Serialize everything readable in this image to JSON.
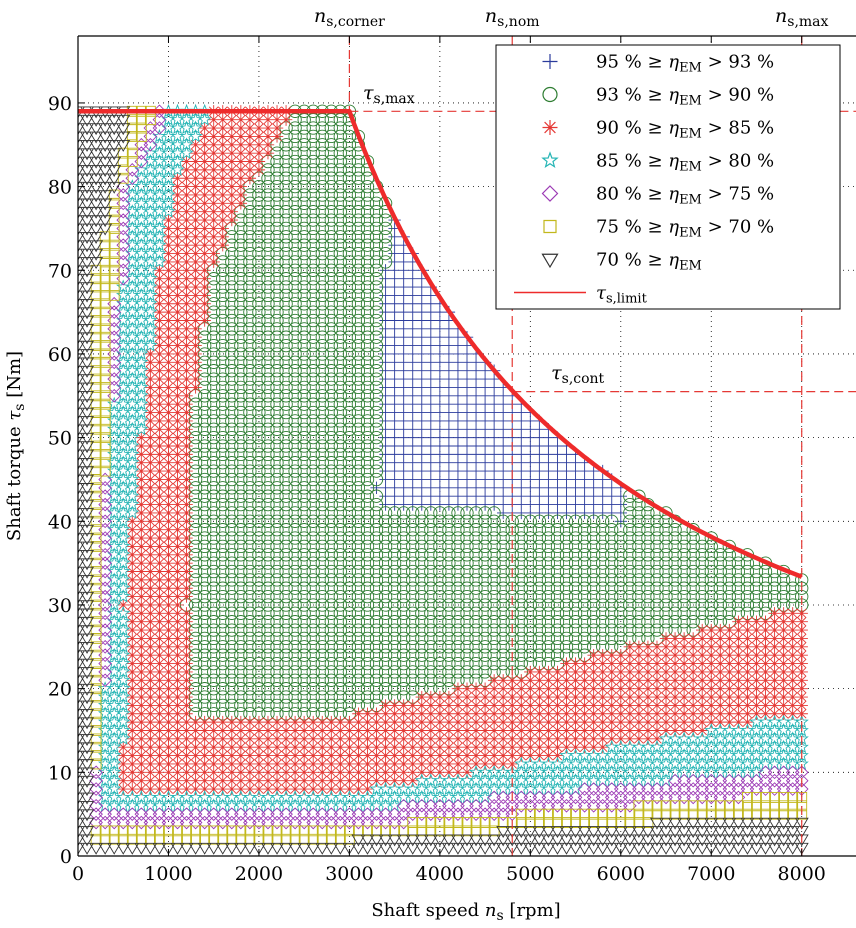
{
  "chart_data": {
    "type": "scatter",
    "xlabel": "Shaft speed",
    "xlabel_symbol": "n",
    "xlabel_sub": "s",
    "xlabel_unit": "[rpm]",
    "ylabel": "Shaft torque",
    "ylabel_symbol": "τ",
    "ylabel_sub": "s",
    "ylabel_unit": "[Nm]",
    "xlim": [
      0,
      8600
    ],
    "ylim": [
      0,
      98
    ],
    "xticks": [
      0,
      1000,
      2000,
      3000,
      4000,
      5000,
      6000,
      7000,
      8000
    ],
    "yticks": [
      0,
      10,
      20,
      30,
      40,
      50,
      60,
      70,
      80,
      90
    ],
    "grid": true,
    "legend_position": "top-right",
    "legend": [
      {
        "marker": "plus",
        "color": "#2b3b9c",
        "text": "95 % ≥ η",
        "sub": "EM",
        "tail": " > 93 %"
      },
      {
        "marker": "circle",
        "color": "#2e7d32",
        "text": "93 % ≥ η",
        "sub": "EM",
        "tail": " > 90 %"
      },
      {
        "marker": "asterisk",
        "color": "#e53935",
        "text": "90 % ≥ η",
        "sub": "EM",
        "tail": " > 85 %"
      },
      {
        "marker": "star",
        "color": "#26b5b5",
        "text": "85 % ≥ η",
        "sub": "EM",
        "tail": " > 80 %"
      },
      {
        "marker": "diamond",
        "color": "#9c3ab5",
        "text": "80 % ≥ η",
        "sub": "EM",
        "tail": " > 75 %"
      },
      {
        "marker": "square",
        "color": "#c2b81c",
        "text": "75 % ≥ η",
        "sub": "EM",
        "tail": " > 70 %"
      },
      {
        "marker": "triangle",
        "color": "#333333",
        "text": "70 % ≥ η",
        "sub": "EM",
        "tail": ""
      },
      {
        "marker": "line",
        "color": "#ee2b2b",
        "text": "τ",
        "sub": "s,limit",
        "tail": ""
      }
    ],
    "torque_limit": {
      "name": "τs,limit",
      "constant_torque": 89,
      "corner_speed": 3000,
      "max_speed": 8000,
      "points": [
        [
          0,
          89
        ],
        [
          3000,
          89
        ],
        [
          3500,
          76.3
        ],
        [
          4000,
          66.8
        ],
        [
          4500,
          59.3
        ],
        [
          5000,
          53.4
        ],
        [
          5500,
          48.5
        ],
        [
          6000,
          44.5
        ],
        [
          6500,
          41.1
        ],
        [
          7000,
          38.1
        ],
        [
          7500,
          35.6
        ],
        [
          8000,
          33.4
        ]
      ]
    },
    "reference_lines": {
      "n_s_corner": {
        "label": "n",
        "sub": "s,corner",
        "value": 3000
      },
      "n_s_nom": {
        "label": "n",
        "sub": "s,nom",
        "value": 4800
      },
      "n_s_max": {
        "label": "n",
        "sub": "s,max",
        "value": 8000
      },
      "tau_s_max": {
        "label": "τ",
        "sub": "s,max",
        "value": 89
      },
      "tau_s_cont": {
        "label": "τ",
        "sub": "s,cont",
        "value": 55.5
      }
    },
    "efficiency_regions": {
      "grid_step_speed_rpm": 100,
      "grid_step_torque_nm": 1,
      "classes": [
        {
          "class": "95 % ≥ ηEM > 93 %",
          "marker": "plus",
          "bounds": "speed ≈ 3300–6000 rpm, torque ≈ 40 Nm to τs,limit"
        },
        {
          "class": "93 % ≥ ηEM > 90 %",
          "marker": "circle",
          "bounds": "speed ≈ 1200–8000 rpm, torque ≈ 17–89 Nm"
        },
        {
          "class": "90 % ≥ ηEM > 85 %",
          "marker": "asterisk",
          "bounds": "speed ≈ 400–8000 rpm, torque ≈ 7–89 Nm"
        },
        {
          "class": "85 % ≥ ηEM > 80 %",
          "marker": "star",
          "bounds": "speed ≈ 250–8000 rpm, torque ≈ 5–89 Nm"
        },
        {
          "class": "80 % ≥ ηEM > 75 %",
          "marker": "diamond",
          "bounds": "speed ≈ 150–8000 rpm, torque ≈ 3–89 Nm"
        },
        {
          "class": "75 % ≥ ηEM > 70 %",
          "marker": "square",
          "bounds": "speed ≈ 100–8000 rpm, torque ≈ 2–89 Nm"
        },
        {
          "class": "70 % ≥ ηEM",
          "marker": "triangle",
          "bounds": "speed ≈ 0–8000 rpm, torque ≈ 1–89 Nm (low speed / low torque)"
        }
      ]
    }
  }
}
